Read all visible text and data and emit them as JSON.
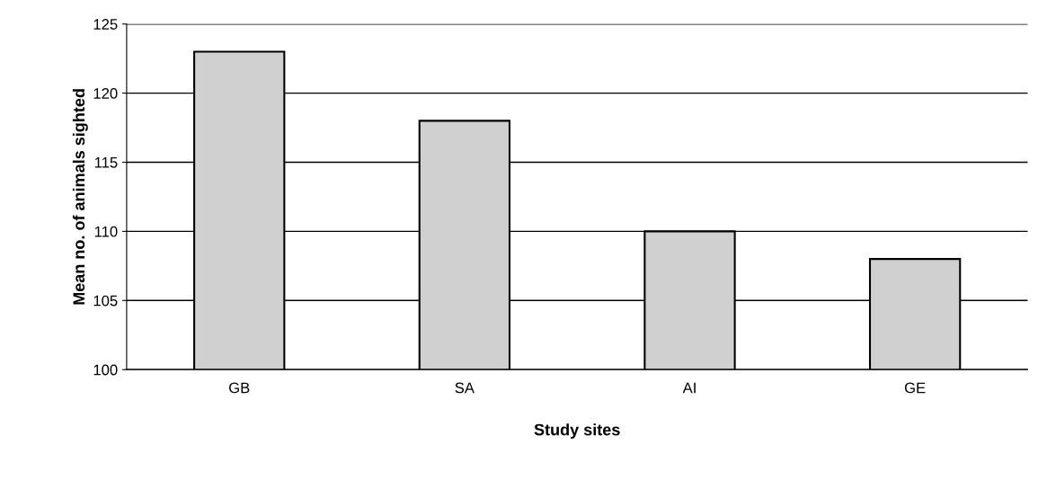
{
  "chart_data": {
    "type": "bar",
    "xlabel": "Study sites",
    "ylabel": "Mean no. of animals sighted",
    "categories": [
      "GB",
      "SA",
      "AI",
      "GE"
    ],
    "values": [
      123,
      118,
      110,
      108
    ],
    "color": "#d0d0d0",
    "ylim": [
      100,
      125
    ],
    "yticks": [
      100,
      105,
      110,
      115,
      120,
      125
    ],
    "grid": "y",
    "legend": false
  }
}
